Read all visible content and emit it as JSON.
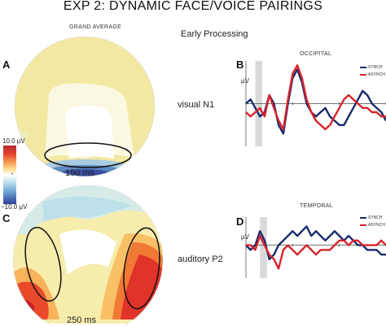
{
  "title": "EXP 2:  DYNAMIC FACE/VOICE PAIRINGS",
  "grand_average": "GRAND AVERAGE",
  "early_processing": "Early Processing",
  "panels": {
    "A": "A",
    "B": "B",
    "C": "C",
    "D": "D"
  },
  "labels": {
    "visual_n1": "visual N1",
    "auditory_p2": "auditory P2",
    "ms150": "150 ms",
    "ms250": "250 ms",
    "occipital": "OCCIPITAL",
    "temporal": "TEMPORAL",
    "uv_b": "µV",
    "uv_d": "µV"
  },
  "colorbar": {
    "top": "10.0 µV",
    "bottom": "−10.0 µV",
    "mid": "0"
  },
  "legend": {
    "synch": "SYNCH",
    "asynch": "ASYNCH",
    "synch_color": "#1a2a6c",
    "asynch_color": "#d8232a"
  },
  "chart_data": [
    {
      "type": "line",
      "title": "OCCIPITAL",
      "ylabel": "µV",
      "x": [
        0,
        10,
        20,
        30,
        40,
        50,
        60,
        70,
        80,
        90,
        100,
        110,
        120,
        130,
        140,
        150,
        160,
        170,
        180,
        190,
        200,
        210,
        220,
        230,
        240,
        250,
        260,
        270,
        280,
        290,
        300
      ],
      "series": [
        {
          "name": "SYNCH",
          "values": [
            0,
            1,
            -1,
            -3,
            -2,
            2,
            0,
            -5,
            -7,
            0,
            6,
            8,
            5,
            0,
            -2,
            -3,
            -2,
            -1,
            -3,
            -4,
            -5,
            -5,
            -3,
            -1,
            1,
            3,
            2,
            0,
            -1,
            -2,
            -4
          ]
        },
        {
          "name": "ASYNCH",
          "values": [
            -2,
            -3,
            -2,
            -1,
            -3,
            2,
            -1,
            -4,
            -6,
            1,
            7,
            9,
            6,
            1,
            -2,
            -4,
            -5,
            -6,
            -5,
            -3,
            -1,
            1,
            2,
            1,
            0,
            -1,
            -1,
            -2,
            -2,
            -3,
            -3
          ]
        }
      ]
    },
    {
      "type": "line",
      "title": "TEMPORAL",
      "ylabel": "µV",
      "x": [
        0,
        10,
        20,
        30,
        40,
        50,
        60,
        70,
        80,
        90,
        100,
        110,
        120,
        130,
        140,
        150,
        160,
        170,
        180,
        190,
        200,
        210,
        220,
        230,
        240,
        250,
        260,
        270,
        280,
        290,
        300
      ],
      "series": [
        {
          "name": "SYNCH",
          "values": [
            0,
            -1,
            0,
            3,
            1,
            -3,
            -2,
            0,
            1,
            2,
            3,
            2,
            3,
            4,
            2,
            3,
            2,
            1,
            2,
            3,
            2,
            1,
            2,
            1,
            0,
            0,
            -1,
            -1,
            -1,
            -2,
            -2
          ]
        },
        {
          "name": "ASYNCH",
          "values": [
            0,
            0,
            -1,
            2,
            0,
            -2,
            -3,
            -5,
            -1,
            0,
            -1,
            -2,
            -1,
            0,
            -1,
            -2,
            -1,
            -1,
            -1,
            0,
            1,
            1,
            0,
            1,
            1,
            0,
            0,
            0,
            0,
            1,
            0
          ]
        }
      ]
    }
  ]
}
